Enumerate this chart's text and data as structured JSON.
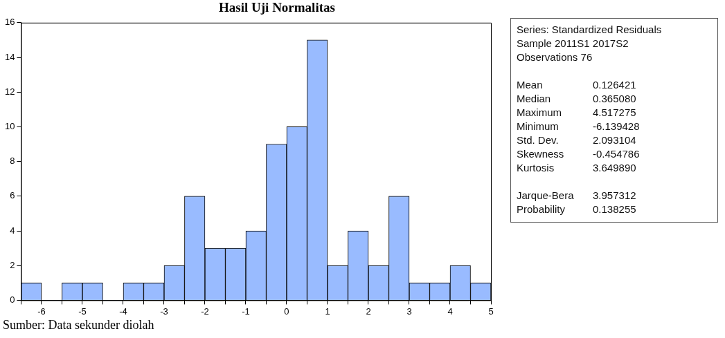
{
  "chart_data": {
    "type": "histogram",
    "title": "Hasil Uji Normalitas",
    "bins": [
      -6.5,
      -6,
      -5.5,
      -5,
      -4.5,
      -4,
      -3.5,
      -3,
      -2.5,
      -2,
      -1.5,
      -1,
      -0.5,
      0,
      0.5,
      1,
      1.5,
      2,
      2.5,
      3,
      3.5,
      4,
      4.5,
      5
    ],
    "values": [
      1,
      0,
      1,
      1,
      0,
      1,
      1,
      2,
      6,
      3,
      3,
      4,
      9,
      10,
      15,
      2,
      4,
      2,
      6,
      1,
      1,
      2,
      1
    ],
    "color": "#99bbff",
    "xlim": [
      -6.5,
      5
    ],
    "xticks": [
      {
        "value": -6.5,
        "label": null
      },
      -6,
      {
        "value": -5.5,
        "label": null
      },
      -5,
      {
        "value": -4.5,
        "label": null
      },
      -4,
      {
        "value": -3.5,
        "label": null
      },
      -3,
      {
        "value": -2.5,
        "label": null
      },
      -2,
      {
        "value": -1.5,
        "label": null
      },
      -1,
      {
        "value": -0.5,
        "label": null
      },
      0,
      {
        "value": 0.5,
        "label": null
      },
      1,
      {
        "value": 1.5,
        "label": null
      },
      2,
      {
        "value": 2.5,
        "label": null
      },
      3,
      {
        "value": 3.5,
        "label": null
      },
      4,
      {
        "value": 4.5,
        "label": null
      },
      5
    ],
    "ylim": [
      0,
      16
    ],
    "yticks": [
      0,
      2,
      4,
      6,
      8,
      10,
      12,
      14,
      16
    ],
    "grid": false,
    "legend": false,
    "annotations": [
      "Series: Standardized Residuals",
      "Sample 2011S1 2017S2",
      "Observations 76",
      "Mean",
      "0.126421",
      "Median",
      "0.365080",
      "Maximum",
      "4.517275",
      "Minimum",
      "-6.139428",
      "Std. Dev.",
      "2.093104",
      "Skewness",
      "-0.454786",
      "Kurtosis",
      "3.649890",
      "Jarque-Bera",
      "3.957312",
      "Probability",
      "0.138255",
      "Sumber: Data sekunder diolah"
    ]
  }
}
